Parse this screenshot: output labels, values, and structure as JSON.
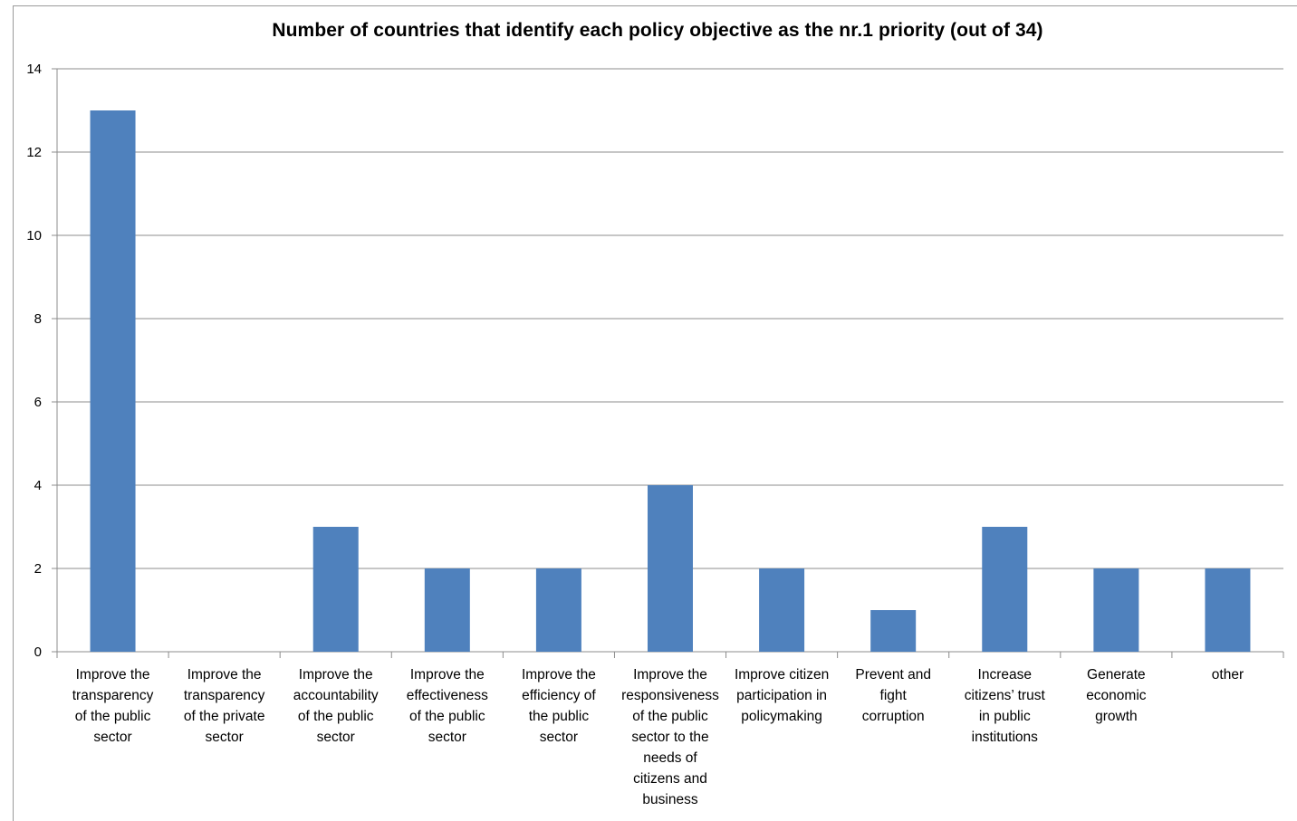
{
  "chart_data": {
    "type": "bar",
    "title": "Number of countries that identify each policy objective as the nr.1 priority (out of 34)",
    "xlabel": "",
    "ylabel": "",
    "ylim": [
      0,
      14
    ],
    "yticks": [
      0,
      2,
      4,
      6,
      8,
      10,
      12,
      14
    ],
    "grid": true,
    "legend": "none",
    "bar_color": "#4f81bd",
    "categories": [
      "Improve the transparency of the public sector",
      "Improve the transparency of the private sector",
      "Improve the accountability of the public sector",
      "Improve the effectiveness of the public sector",
      "Improve the efficiency of the public sector",
      "Improve the responsiveness of the public sector to the needs of citizens and business",
      "Improve citizen participation in policymaking",
      "Prevent and fight corruption",
      "Increase citizens’ trust in public institutions",
      "Generate economic growth",
      "other"
    ],
    "category_lines": [
      [
        "Improve the",
        "transparency",
        "of the public",
        "sector"
      ],
      [
        "Improve the",
        "transparency",
        "of the private",
        "sector"
      ],
      [
        "Improve the",
        "accountability",
        "of the public",
        "sector"
      ],
      [
        "Improve the",
        "effectiveness",
        "of the public",
        "sector"
      ],
      [
        "Improve the",
        "efficiency of",
        "the public",
        "sector"
      ],
      [
        "Improve the",
        "responsiveness",
        "of the public",
        "sector to the",
        "needs of",
        "citizens and",
        "business"
      ],
      [
        "Improve citizen",
        "participation in",
        "policymaking"
      ],
      [
        "Prevent and",
        "fight",
        "corruption"
      ],
      [
        "Increase",
        "citizens’ trust",
        "in public",
        "institutions"
      ],
      [
        "Generate",
        "economic",
        "growth"
      ],
      [
        "other"
      ]
    ],
    "values": [
      13,
      0,
      3,
      2,
      2,
      4,
      2,
      1,
      3,
      2,
      2
    ]
  }
}
